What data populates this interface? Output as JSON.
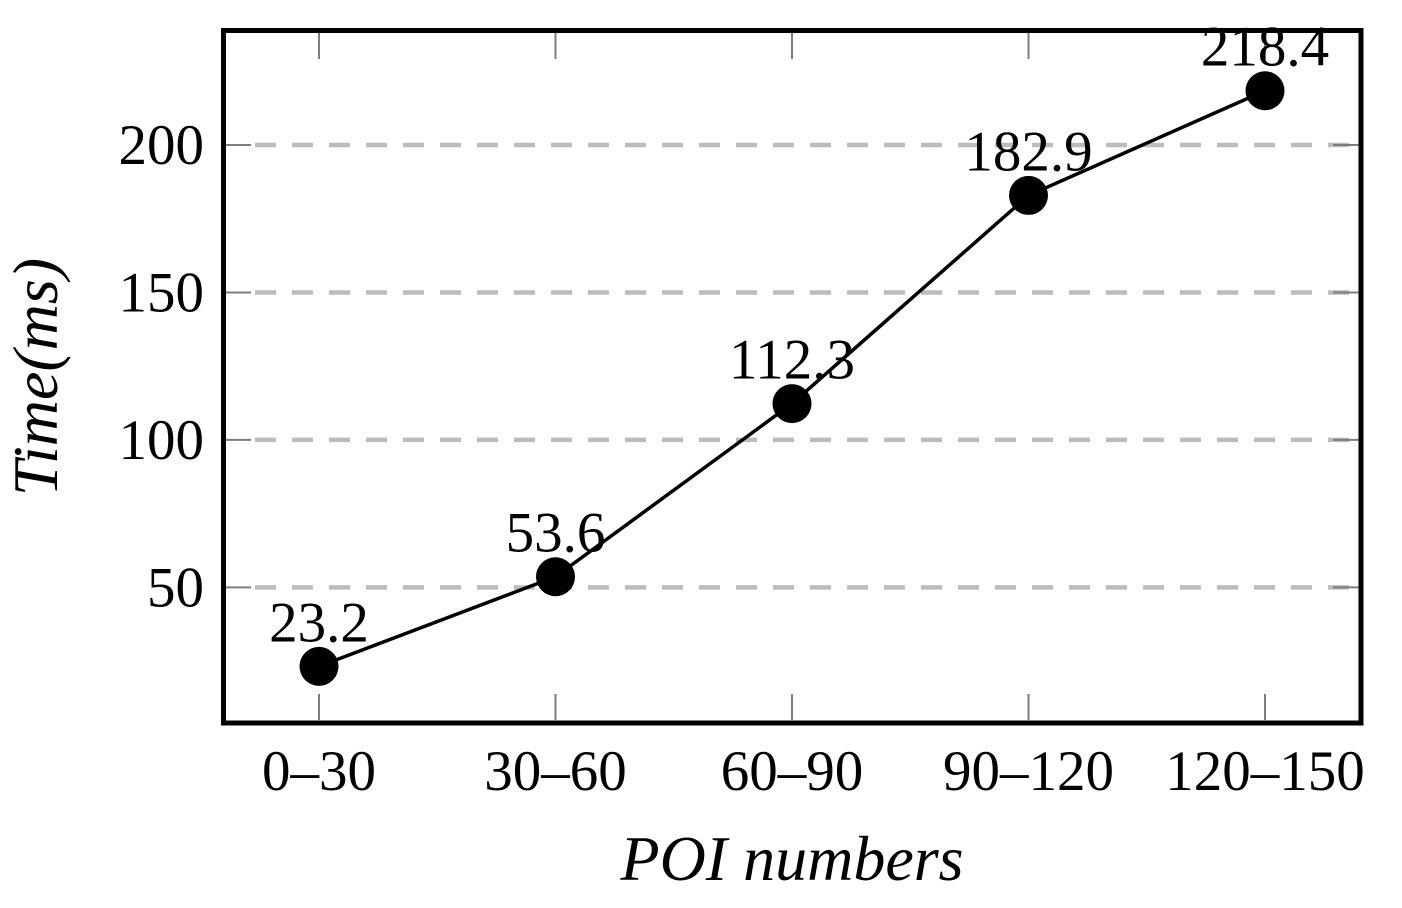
{
  "chart_data": {
    "type": "line",
    "title": "",
    "xlabel": "POI numbers",
    "ylabel": "Time(ms)",
    "categories": [
      "0–30",
      "30–60",
      "60–90",
      "90–120",
      "120–150"
    ],
    "values": [
      23.2,
      53.6,
      112.3,
      182.9,
      218.4
    ],
    "data_labels": [
      "23.2",
      "53.6",
      "112.3",
      "182.9",
      "218.4"
    ],
    "yticks": [
      50,
      100,
      150,
      200
    ],
    "ytick_labels": [
      "50",
      "100",
      "150",
      "200"
    ],
    "ylim": [
      4,
      239
    ],
    "grid": "horizontal-dashed",
    "legend": "none",
    "marker": "filled-circle",
    "line_style": "solid",
    "colors": {
      "line": "#000000",
      "marker": "#000000",
      "grid": "#bcbcbc",
      "tick": "#7d7d7d",
      "axis": "#000000",
      "text": "#000000",
      "background": "#ffffff"
    }
  }
}
